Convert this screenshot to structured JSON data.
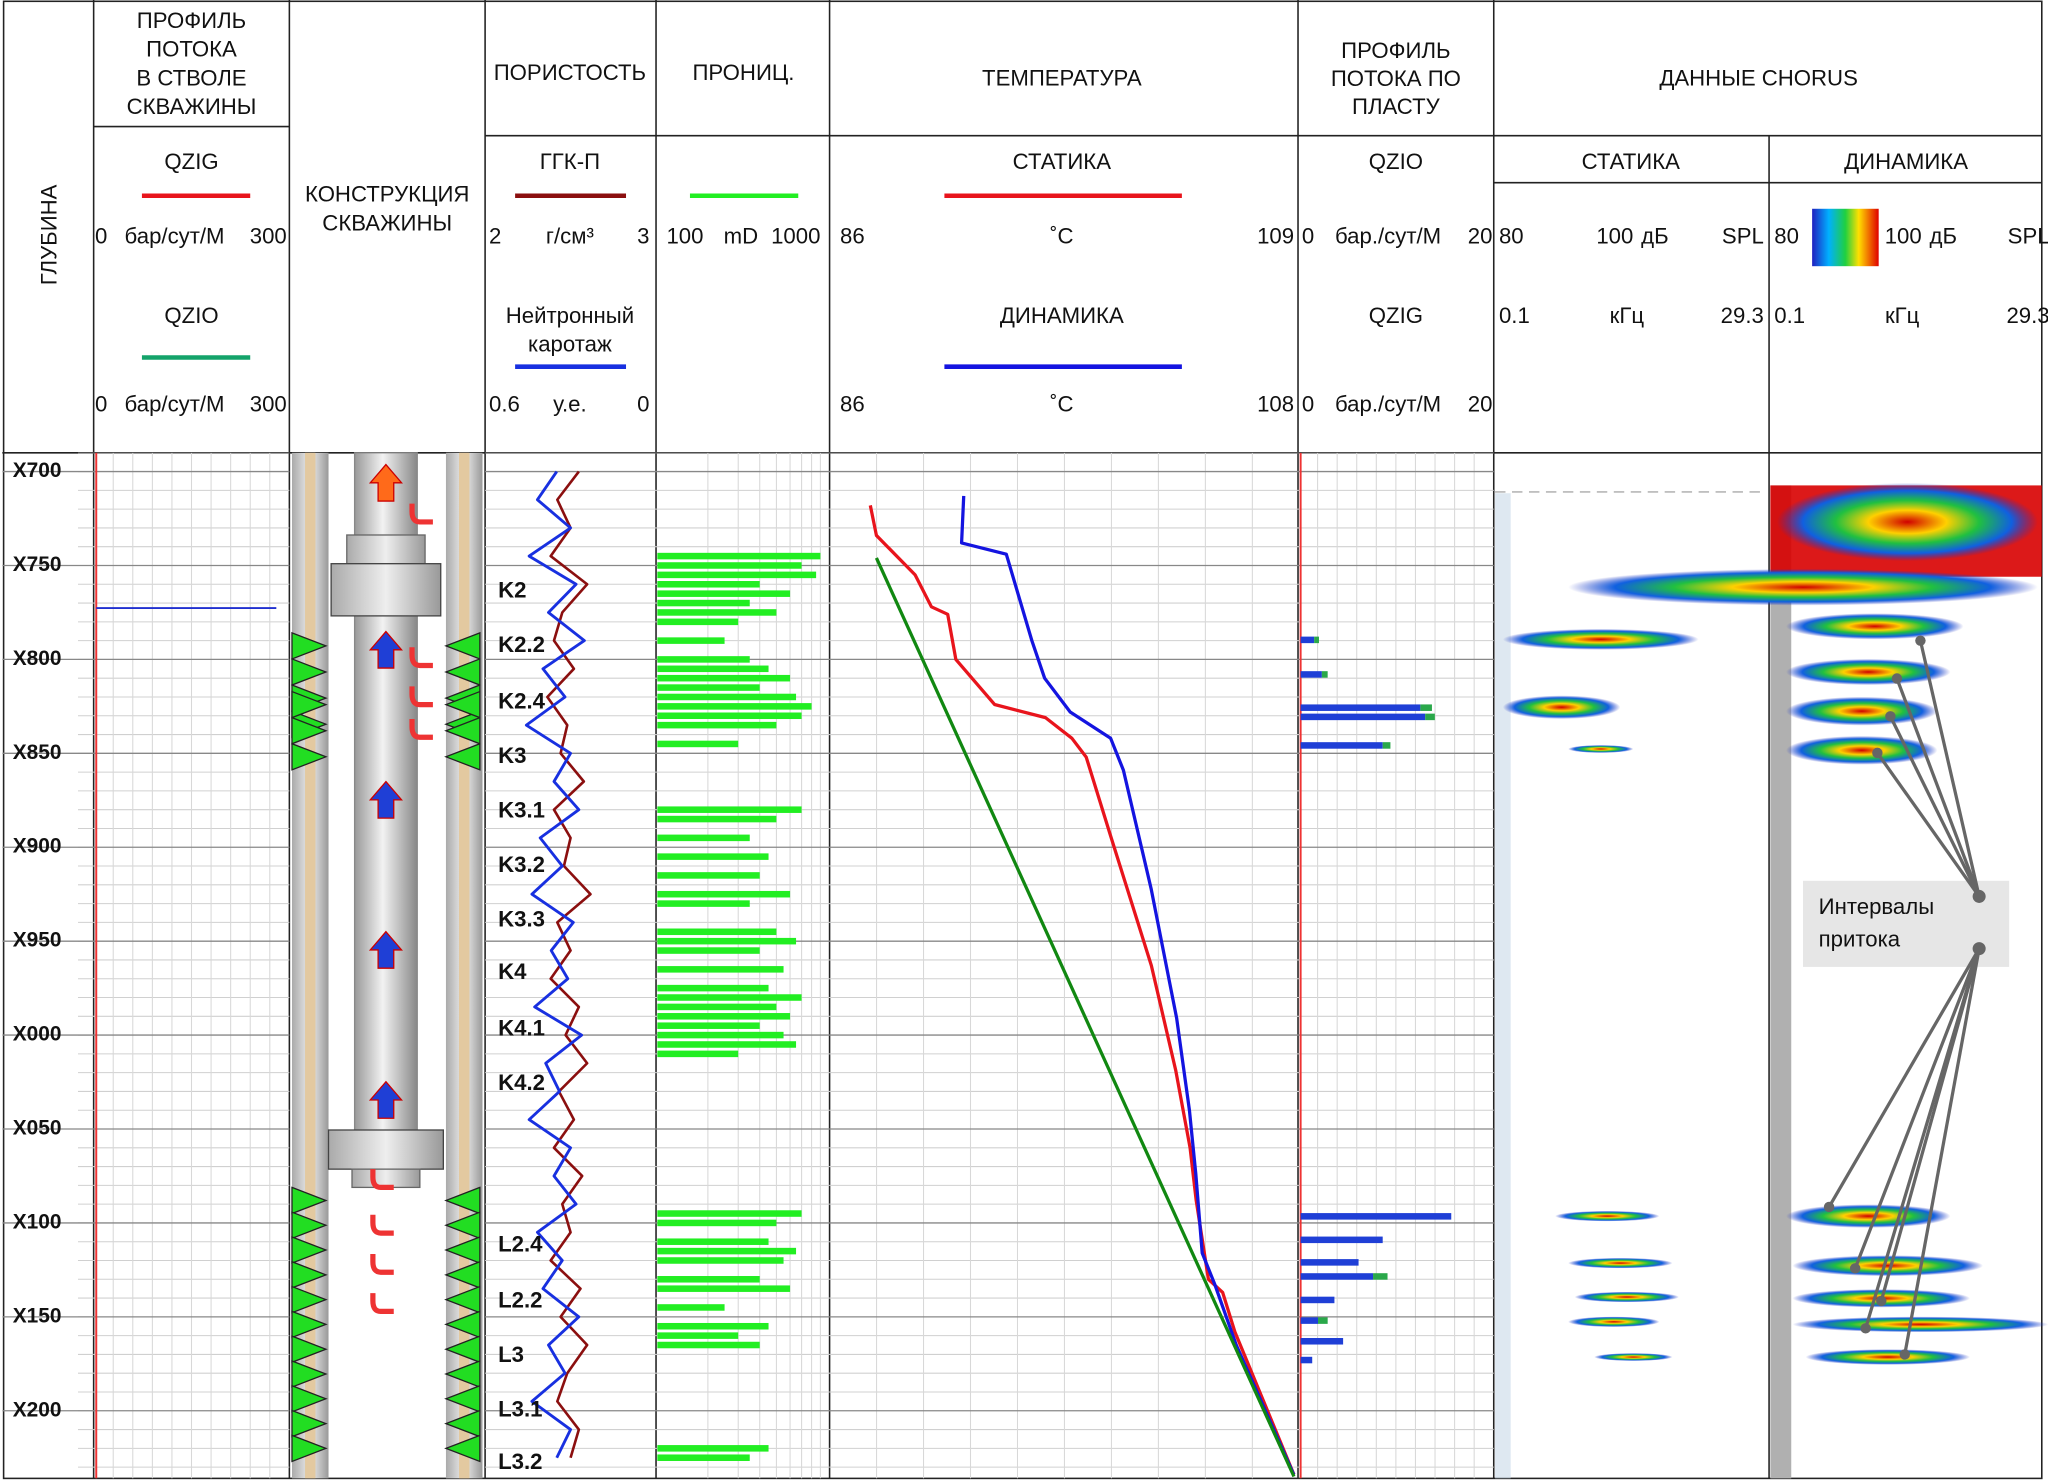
{
  "depth_axis": {
    "title": "ГЛУБИНА",
    "lim": [
      690,
      1236
    ],
    "ticks": [
      {
        "value": 700,
        "label": "X700"
      },
      {
        "value": 750,
        "label": "X750"
      },
      {
        "value": 800,
        "label": "X800"
      },
      {
        "value": 850,
        "label": "X850"
      },
      {
        "value": 900,
        "label": "X900"
      },
      {
        "value": 950,
        "label": "X950"
      },
      {
        "value": 1000,
        "label": "X000"
      },
      {
        "value": 1050,
        "label": "X050"
      },
      {
        "value": 1100,
        "label": "X100"
      },
      {
        "value": 1150,
        "label": "X150"
      },
      {
        "value": 1200,
        "label": "X200"
      }
    ]
  },
  "wellbore_flow": {
    "title": [
      "ПРОФИЛЬ",
      "ПОТОКА",
      "В СТВОЛЕ",
      "СКВАЖИНЫ"
    ],
    "curves": [
      {
        "name": "QZIG",
        "color": "#e8141c",
        "scale": [
          0,
          300
        ],
        "unit": "бар/сут/М"
      },
      {
        "name": "QZIO",
        "color": "#14a36a",
        "scale": [
          0,
          300
        ],
        "unit": "бар/сут/М"
      }
    ]
  },
  "construction": {
    "title": [
      "КОНСТРУКЦИЯ",
      "СКВАЖИНЫ"
    ]
  },
  "porosity": {
    "title": "ПОРИСТОСТЬ",
    "depth": [
      700,
      715,
      730,
      745,
      760,
      775,
      790,
      805,
      820,
      835,
      850,
      865,
      880,
      895,
      910,
      925,
      940,
      955,
      970,
      985,
      1000,
      1015,
      1030,
      1045,
      1060,
      1075,
      1090,
      1105,
      1120,
      1135,
      1150,
      1165,
      1180,
      1195,
      1210,
      1225
    ],
    "curves": [
      {
        "name": [
          "ГГК-П"
        ],
        "color": "#8b0f0f",
        "scale": [
          2,
          3
        ],
        "unit": "г/см³",
        "values": [
          2.55,
          2.42,
          2.5,
          2.38,
          2.6,
          2.45,
          2.4,
          2.52,
          2.36,
          2.48,
          2.44,
          2.58,
          2.4,
          2.5,
          2.46,
          2.62,
          2.42,
          2.5,
          2.38,
          2.55,
          2.47,
          2.6,
          2.43,
          2.52,
          2.4,
          2.57,
          2.45,
          2.5,
          2.38,
          2.56,
          2.44,
          2.6,
          2.48,
          2.42,
          2.55,
          2.5
        ]
      },
      {
        "name": [
          "Нейтронный",
          "каротаж"
        ],
        "color": "#1830e0",
        "scale": [
          0.6,
          0
        ],
        "unit": "у.е.",
        "values": [
          0.35,
          0.42,
          0.3,
          0.45,
          0.28,
          0.38,
          0.25,
          0.4,
          0.32,
          0.46,
          0.3,
          0.36,
          0.27,
          0.41,
          0.33,
          0.44,
          0.29,
          0.37,
          0.31,
          0.43,
          0.26,
          0.39,
          0.34,
          0.45,
          0.3,
          0.36,
          0.28,
          0.42,
          0.33,
          0.4,
          0.27,
          0.38,
          0.32,
          0.44,
          0.3,
          0.35
        ]
      }
    ],
    "zones": {
      "names": [
        "K2",
        "K2.2",
        "K2.4",
        "K3",
        "K3.1",
        "K3.2",
        "K3.3",
        "K4",
        "K4.1",
        "K4.2",
        "L2.4",
        "L2.2",
        "L3",
        "L3.1",
        "L3.2"
      ],
      "depth": [
        764,
        793,
        823,
        852,
        881,
        910,
        939,
        967,
        997,
        1026,
        1112,
        1142,
        1171,
        1200,
        1228
      ]
    }
  },
  "permeability": {
    "title": "ПРОНИЦ.",
    "color": "#22ee22",
    "scale": [
      100,
      1000
    ],
    "unit": "mD",
    "log": true,
    "depth": [
      745,
      750,
      755,
      760,
      765,
      770,
      775,
      780,
      790,
      800,
      805,
      810,
      815,
      820,
      825,
      830,
      835,
      845,
      880,
      885,
      895,
      905,
      915,
      925,
      930,
      945,
      950,
      955,
      965,
      975,
      980,
      985,
      990,
      995,
      1000,
      1005,
      1010,
      1095,
      1100,
      1110,
      1115,
      1120,
      1130,
      1135,
      1145,
      1155,
      1160,
      1165,
      1220,
      1225
    ],
    "values": [
      900,
      700,
      850,
      400,
      600,
      350,
      500,
      300,
      250,
      350,
      450,
      600,
      400,
      650,
      800,
      700,
      500,
      300,
      700,
      500,
      350,
      450,
      400,
      600,
      350,
      500,
      650,
      400,
      550,
      450,
      700,
      500,
      600,
      400,
      550,
      650,
      300,
      700,
      500,
      450,
      650,
      550,
      400,
      600,
      250,
      450,
      300,
      400,
      450,
      350
    ]
  },
  "temperature": {
    "title": "ТЕМПЕРАТУРА",
    "curves": [
      {
        "name": "СТАТИКА",
        "color": "#e8141c",
        "scale": [
          86,
          109
        ],
        "unit": "˚С",
        "depth": [
          718,
          734,
          755,
          772,
          776,
          800,
          824,
          831,
          842,
          852,
          894,
          963,
          1019,
          1060,
          1088,
          1130,
          1137,
          1158,
          1234
        ],
        "values": [
          88.0,
          88.3,
          90.2,
          91.0,
          91.8,
          92.2,
          94.1,
          96.6,
          97.9,
          98.6,
          99.8,
          101.8,
          103.0,
          103.7,
          104.0,
          104.6,
          105.3,
          105.9,
          108.8
        ]
      },
      {
        "name": "ДИНАМИКА",
        "color": "#1414e0",
        "scale": [
          86,
          108
        ],
        "unit": "˚С",
        "depth": [
          713,
          738,
          744,
          790,
          810,
          828,
          842,
          859,
          922,
          991,
          1040,
          1074,
          1116,
          1133,
          1165,
          1234
        ],
        "values": [
          92.3,
          92.2,
          94.3,
          95.5,
          96.1,
          97.3,
          99.2,
          99.8,
          101.1,
          102.3,
          102.9,
          103.2,
          103.5,
          104.1,
          105.1,
          107.8
        ]
      },
      {
        "color": "#118811",
        "depth": [
          746,
          1235
        ],
        "values": [
          88.3,
          108.8
        ]
      }
    ]
  },
  "layer_flow": {
    "title": [
      "ПРОФИЛЬ",
      "ПОТОКА ПО",
      "ПЛАСТУ"
    ],
    "depth": [
      789.6,
      808,
      825.7,
      830.6,
      845.8,
      1096.5,
      1109,
      1121,
      1128.5,
      1141,
      1152,
      1163,
      1173
    ],
    "series": [
      {
        "name": "QZIO",
        "color": "#1f3fd6",
        "scale": [
          0,
          20
        ],
        "unit": "бар./сут/М",
        "values": [
          1.4,
          2.2,
          12.4,
          12.9,
          8.5,
          15.6,
          8.5,
          6.0,
          7.5,
          3.5,
          1.8,
          4.4,
          1.2
        ]
      },
      {
        "name": "QZIG",
        "color": "#2aa84a",
        "scale": [
          0,
          20
        ],
        "unit": "бар./сут/М",
        "values": [
          0.5,
          0.6,
          1.2,
          1.0,
          0.8,
          0,
          0,
          0,
          1.5,
          0,
          1.0,
          0,
          0
        ]
      }
    ]
  },
  "chorus": {
    "title": "ДАННЫЕ CHORUS",
    "panels": [
      {
        "name": "СТАТИКА",
        "spl": [
          80,
          100
        ],
        "spl_unit": "дБ",
        "spl_label": "SPL",
        "freq": [
          0.1,
          29.3
        ],
        "freq_unit": "кГц"
      },
      {
        "name": "ДИНАМИКА",
        "spl": [
          80,
          100
        ],
        "spl_unit": "дБ",
        "spl_label": "SPL",
        "freq": [
          0.1,
          29.3
        ],
        "freq_unit": "кГц"
      }
    ]
  },
  "annotation": [
    "Интервалы",
    "притока"
  ]
}
